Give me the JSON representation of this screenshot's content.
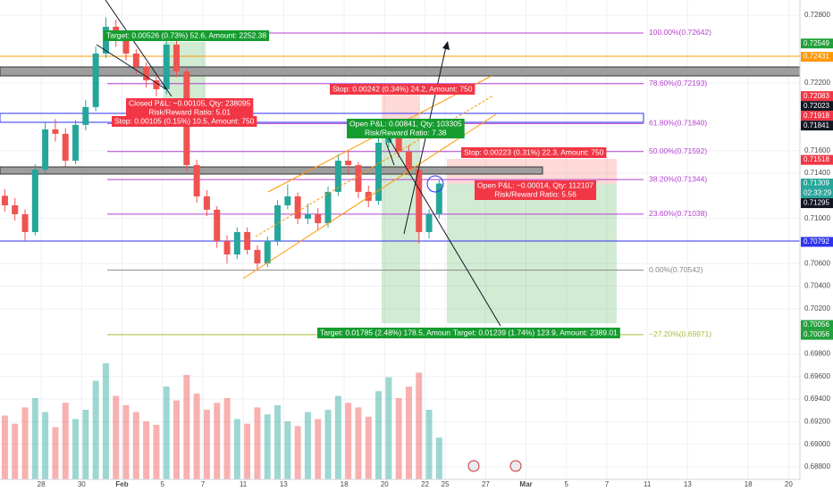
{
  "chart_data": {
    "type": "candlestick",
    "x": [
      -1.8,
      -1.3,
      -0.8,
      -0.3,
      0.2,
      0.7,
      1.2,
      1.7,
      2.2,
      2.7,
      3.2,
      3.7,
      4.2,
      4.7,
      5.2,
      5.7,
      6.2,
      6.7,
      7.2,
      7.7,
      8.2,
      8.7,
      9.2,
      9.7,
      10.2,
      10.7,
      11.2,
      11.7,
      12.2,
      12.7,
      13.2,
      13.7,
      14.2,
      14.7,
      15.2,
      15.7,
      16.2,
      16.7,
      17.2,
      17.7,
      18.2,
      18.7,
      19.2,
      19.7
    ],
    "open": [
      0.712,
      0.71116,
      0.71037,
      0.70879,
      0.71432,
      0.71788,
      0.71749,
      0.71511,
      0.71828,
      0.71986,
      0.7246,
      0.72697,
      0.72579,
      0.7246,
      0.72342,
      0.72223,
      0.72144,
      0.72539,
      0.72302,
      0.71472,
      0.71195,
      0.71077,
      0.708,
      0.70681,
      0.70879,
      0.70721,
      0.70602,
      0.708,
      0.71116,
      0.71195,
      0.70998,
      0.71037,
      0.70958,
      0.71235,
      0.71511,
      0.71472,
      0.71235,
      0.71156,
      0.7167,
      0.71749,
      0.71591,
      0.71432,
      0.70879,
      0.71037
    ],
    "high": [
      0.7126,
      0.7118,
      0.7108,
      0.7148,
      0.7185,
      0.7188,
      0.718,
      0.7187,
      0.7205,
      0.7252,
      0.7278,
      0.7276,
      0.7264,
      0.725,
      0.7238,
      0.7228,
      0.7264,
      0.7258,
      0.7233,
      0.7152,
      0.7125,
      0.7111,
      0.7085,
      0.7092,
      0.7092,
      0.7076,
      0.7084,
      0.7116,
      0.713,
      0.7123,
      0.7113,
      0.7109,
      0.7128,
      0.7157,
      0.716,
      0.715,
      0.7129,
      0.7172,
      0.7185,
      0.7182,
      0.7165,
      0.7147,
      0.7108,
      0.7135
    ],
    "low": [
      0.7106,
      0.7098,
      0.708,
      0.7085,
      0.714,
      0.7168,
      0.7146,
      0.7148,
      0.7178,
      0.7195,
      0.7242,
      0.7252,
      0.724,
      0.7228,
      0.7216,
      0.7208,
      0.721,
      0.7225,
      0.7142,
      0.7114,
      0.7102,
      0.7074,
      0.706,
      0.7064,
      0.7068,
      0.7054,
      0.7057,
      0.7076,
      0.7108,
      0.7095,
      0.7095,
      0.709,
      0.7092,
      0.712,
      0.714,
      0.7118,
      0.711,
      0.7112,
      0.7163,
      0.7154,
      0.7138,
      0.7078,
      0.7082,
      0.71
    ],
    "close": [
      0.71116,
      0.71037,
      0.70879,
      0.71432,
      0.71788,
      0.71749,
      0.71511,
      0.71828,
      0.71986,
      0.7246,
      0.72697,
      0.72579,
      0.7246,
      0.72342,
      0.72223,
      0.72144,
      0.72539,
      0.72302,
      0.71472,
      0.71195,
      0.71077,
      0.708,
      0.70681,
      0.70879,
      0.70721,
      0.70602,
      0.708,
      0.71116,
      0.71195,
      0.70998,
      0.71037,
      0.70958,
      0.71235,
      0.71511,
      0.71472,
      0.71235,
      0.71156,
      0.7167,
      0.71749,
      0.71591,
      0.71432,
      0.70879,
      0.71037,
      0.71309
    ],
    "volume": [
      55,
      48,
      62,
      70,
      58,
      45,
      66,
      52,
      60,
      85,
      100,
      72,
      64,
      58,
      50,
      47,
      80,
      68,
      90,
      74,
      60,
      66,
      70,
      52,
      48,
      62,
      56,
      64,
      50,
      46,
      58,
      52,
      60,
      72,
      66,
      62,
      54,
      76,
      88,
      70,
      80,
      92,
      60,
      36
    ],
    "up_color": "#26a69a",
    "down_color": "#ef5350",
    "xlim": [
      -2.04,
      37.56
    ],
    "ylim": [
      0.68689,
      0.72934
    ],
    "xticks": [
      {
        "value": 0,
        "label": "28"
      },
      {
        "value": 2,
        "label": "30"
      },
      {
        "value": 4,
        "label": "Feb"
      },
      {
        "value": 6,
        "label": "5"
      },
      {
        "value": 8,
        "label": "7"
      },
      {
        "value": 10,
        "label": "11"
      },
      {
        "value": 12,
        "label": "13"
      },
      {
        "value": 15,
        "label": "18"
      },
      {
        "value": 17,
        "label": "20"
      },
      {
        "value": 19,
        "label": "22"
      },
      {
        "value": 20,
        "label": "25"
      },
      {
        "value": 22,
        "label": "27"
      },
      {
        "value": 24,
        "label": "Mar"
      },
      {
        "value": 26,
        "label": "5"
      },
      {
        "value": 28,
        "label": "7"
      },
      {
        "value": 30,
        "label": "11"
      },
      {
        "value": 32,
        "label": "13"
      },
      {
        "value": 35,
        "label": "18"
      },
      {
        "value": 37,
        "label": "20"
      }
    ],
    "yticks": [
      {
        "value": 0.728,
        "label": "0.72800"
      },
      {
        "value": 0.722,
        "label": "0.72200"
      },
      {
        "value": 0.716,
        "label": "0.71600"
      },
      {
        "value": 0.714,
        "label": "0.71400"
      },
      {
        "value": 0.71,
        "label": "0.71000"
      },
      {
        "value": 0.706,
        "label": "0.70600"
      },
      {
        "value": 0.704,
        "label": "0.70400"
      },
      {
        "value": 0.702,
        "label": "0.70200"
      },
      {
        "value": 0.698,
        "label": "0.69800"
      },
      {
        "value": 0.696,
        "label": "0.69600"
      },
      {
        "value": 0.694,
        "label": "0.69400"
      },
      {
        "value": 0.692,
        "label": "0.69200"
      },
      {
        "value": 0.69,
        "label": "0.69000"
      },
      {
        "value": 0.688,
        "label": "0.68800"
      }
    ],
    "grid": true,
    "fib_levels": [
      {
        "label": "100.00%(0.72642)",
        "price": 0.72642,
        "color": "#b541d0"
      },
      {
        "label": "78.60%(0.72193)",
        "price": 0.72193,
        "color": "#b541d0"
      },
      {
        "label": "61.80%(0.71840)",
        "price": 0.7184,
        "color": "#b541d0"
      },
      {
        "label": "50.00%(0.71592)",
        "price": 0.71592,
        "color": "#b541d0"
      },
      {
        "label": "38.20%(0.71344)",
        "price": 0.71344,
        "color": "#b541d0"
      },
      {
        "label": "23.60%(0.71038)",
        "price": 0.71038,
        "color": "#b541d0"
      },
      {
        "label": "0.00%(0.70542)",
        "price": 0.70542,
        "color": "#888888"
      },
      {
        "label": "−27.20%(0.69971)",
        "price": 0.69971,
        "color": "#a3bf3a"
      }
    ],
    "price_tags": [
      {
        "value": 0.72549,
        "color": "#22a13b"
      },
      {
        "value": 0.72431,
        "color": "#ff9800"
      },
      {
        "value": 0.72083,
        "color": "#f23645"
      },
      {
        "value": 0.72023,
        "color": "#131722"
      },
      {
        "value": 0.71918,
        "color": "#f23645"
      },
      {
        "value": 0.71841,
        "color": "#131722"
      },
      {
        "value": 0.71518,
        "color": "#f23645"
      },
      {
        "value": 0.71309,
        "color": "#26a69a"
      },
      {
        "value": 0.71295,
        "color": "#131722"
      },
      {
        "value": 0.70792,
        "color": "#2e33f0"
      },
      {
        "value": 0.70056,
        "color": "#22a13b"
      },
      {
        "value": 0.70056,
        "color": "#22a13b"
      }
    ],
    "countdown": "02:33:29",
    "annotations": [
      {
        "lines": [
          "Target: 0.00526 (0.73%) 52.6, Amount: 2252.38"
        ],
        "color": "#169c2f"
      },
      {
        "lines": [
          "Closed P&L: −0.00105, Qty: 238095",
          "Risk/Reward Ratio: 5.01"
        ],
        "color": "#f23645"
      },
      {
        "lines": [
          "Stop: 0.00105 (0.15%) 10.5, Amount: 750"
        ],
        "color": "#f23645"
      },
      {
        "lines": [
          "Stop: 0.00242 (0.34%) 24.2, Amount: 750"
        ],
        "color": "#f23645"
      },
      {
        "lines": [
          "Open P&L: 0.00841, Qty: 103305",
          "Risk/Reward Ratio: 7.38"
        ],
        "color": "#169c2f"
      },
      {
        "lines": [
          "Stop: 0.00223 (0.31%) 22.3, Amount: 750"
        ],
        "color": "#f23645"
      },
      {
        "lines": [
          "Open P&L: −0.00014, Qty: 112107",
          "Risk/Reward Ratio: 5.56"
        ],
        "color": "#f23645"
      },
      {
        "lines": [
          "Target: 0.01785 (2.48%) 178.5, Amount"
        ],
        "color": "#169c2f"
      },
      {
        "lines": [
          "Target: 0.01239 (1.74%) 123.9, Amount: 2389.01"
        ],
        "color": "#169c2f"
      }
    ]
  }
}
